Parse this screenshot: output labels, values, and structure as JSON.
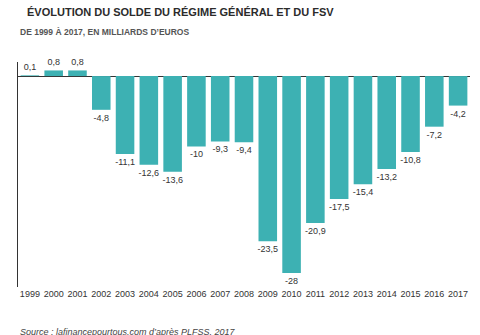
{
  "chart_data": {
    "type": "bar",
    "title": "ÉVOLUTION DU SOLDE DU RÉGIME GÉNÉRAL ET DU FSV",
    "subtitle": "DE 1999 À 2017, EN MILLIARDS D’EUROS",
    "source": "Source : lafinancepourtous.com d’après PLFSS, 2017",
    "categories": [
      "1999",
      "2000",
      "2001",
      "2002",
      "2003",
      "2004",
      "2005",
      "2006",
      "2007",
      "2008",
      "2009",
      "2010",
      "2011",
      "2012",
      "2013",
      "2014",
      "2015",
      "2016",
      "2017"
    ],
    "values": [
      0.1,
      0.8,
      0.8,
      -4.8,
      -11.1,
      -12.6,
      -13.6,
      -10,
      -9.3,
      -9.4,
      -23.5,
      -28,
      -20.9,
      -17.5,
      -15.4,
      -13.2,
      -10.8,
      -7.2,
      -4.2
    ],
    "value_labels": [
      "0,1",
      "0,8",
      "0,8",
      "-4,8",
      "-11,1",
      "-12,6",
      "-13,6",
      "-10",
      "-9,3",
      "-9,4",
      "-23,5",
      "-28",
      "-20,9",
      "-17,5",
      "-15,4",
      "-13,2",
      "-10,8",
      "-7,2",
      "-4,2"
    ],
    "color": "#3db1b3",
    "ylim": [
      -30,
      2
    ],
    "yticks": [],
    "grid": false,
    "data_labels": true,
    "tick_labels": "x"
  }
}
